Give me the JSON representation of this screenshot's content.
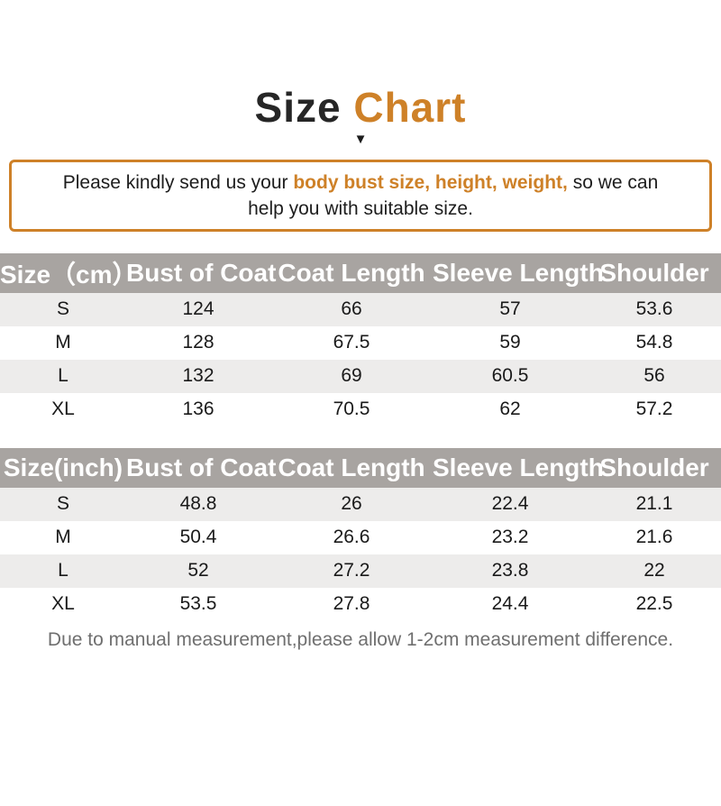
{
  "title": {
    "part1": "Size ",
    "part2": "Chart",
    "arrow_icon": "▼"
  },
  "notice": {
    "prefix": "Please kindly send us your ",
    "highlight": "body bust size, height, weight,",
    "suffix_line1": " so we can",
    "line2": "help you with suitable size."
  },
  "chart_data": [
    {
      "type": "table",
      "title": "Size Chart (cm)",
      "columns": [
        "Size（cm）",
        "Bust of Coat",
        "Coat Length",
        "Sleeve Length",
        "Shoulder"
      ],
      "rows": [
        [
          "S",
          "124",
          "66",
          "57",
          "53.6"
        ],
        [
          "M",
          "128",
          "67.5",
          "59",
          "54.8"
        ],
        [
          "L",
          "132",
          "69",
          "60.5",
          "56"
        ],
        [
          "XL",
          "136",
          "70.5",
          "62",
          "57.2"
        ]
      ]
    },
    {
      "type": "table",
      "title": "Size Chart (inch)",
      "columns": [
        "Size(inch)",
        "Bust of Coat",
        "Coat Length",
        "Sleeve Length",
        "Shoulder"
      ],
      "rows": [
        [
          "S",
          "48.8",
          "26",
          "22.4",
          "21.1"
        ],
        [
          "M",
          "50.4",
          "26.6",
          "23.2",
          "21.6"
        ],
        [
          "L",
          "52",
          "27.2",
          "23.8",
          "22"
        ],
        [
          "XL",
          "53.5",
          "27.8",
          "24.4",
          "22.5"
        ]
      ]
    }
  ],
  "footer": {
    "note": "Due to manual measurement,please allow 1-2cm measurement difference."
  },
  "colors": {
    "accent_orange": "#ce8128",
    "header_gray": "#a8a4a1",
    "stripe_gray": "#edeceb"
  }
}
